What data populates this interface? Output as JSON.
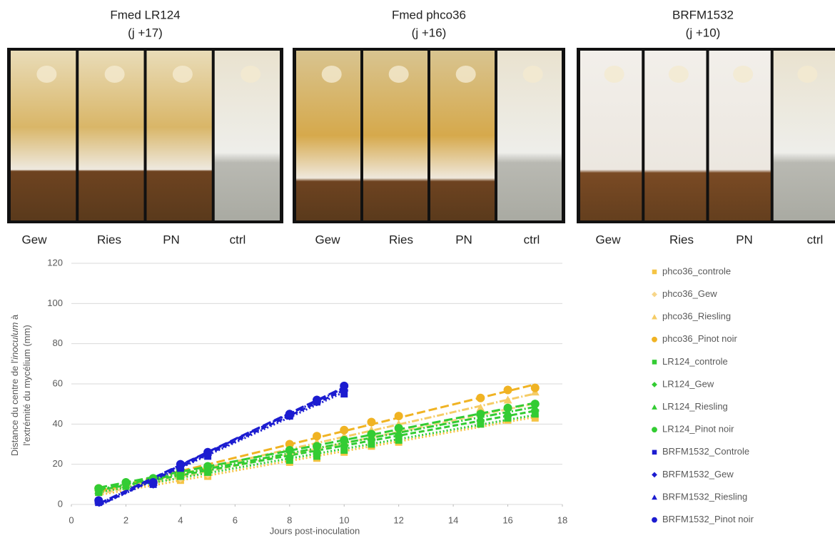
{
  "panels": [
    {
      "title": "Fmed LR124",
      "subtitle": "(j +17)",
      "lanes": [
        "Gew",
        "Ries",
        "PN",
        "ctrl"
      ]
    },
    {
      "title": "Fmed phco36",
      "subtitle": "(j +16)",
      "lanes": [
        "Gew",
        "Ries",
        "PN",
        "ctrl"
      ]
    },
    {
      "title": "BRFM1532",
      "subtitle": "(j +10)",
      "lanes": [
        "Gew",
        "Ries",
        "PN",
        "ctrl"
      ]
    }
  ],
  "chart_data": {
    "type": "scatter",
    "ylabel": [
      [
        "Distance du centre de l'",
        "inoculum",
        " à"
      ],
      [
        "l'extrémité du mycélium (mm)"
      ]
    ],
    "xlabel": "Jours post-inoculation",
    "xlim": [
      0,
      18
    ],
    "xticks": [
      0,
      2,
      4,
      6,
      8,
      10,
      12,
      14,
      16,
      18
    ],
    "ylim": [
      0,
      120
    ],
    "yticks": [
      0,
      20,
      40,
      60,
      80,
      100,
      120
    ],
    "grid": true,
    "legend": "right",
    "series": [
      {
        "name": "phco36_controle",
        "color": "#f5c444",
        "marker": "square",
        "x": [
          1,
          4,
          5,
          8,
          9,
          10,
          11,
          12,
          15,
          16,
          17
        ],
        "values": [
          6,
          12,
          14,
          21,
          23,
          26,
          29,
          31,
          40,
          42,
          43
        ]
      },
      {
        "name": "phco36_Gew",
        "color": "#f7d68a",
        "marker": "diamond",
        "x": [
          1,
          4,
          5,
          8,
          9,
          10,
          11,
          12,
          15,
          16,
          17
        ],
        "values": [
          7,
          13,
          15,
          25,
          27,
          30,
          33,
          37,
          45,
          48,
          50
        ]
      },
      {
        "name": "phco36_Riesling",
        "color": "#f5cc66",
        "marker": "triangle",
        "x": [
          1,
          4,
          5,
          8,
          9,
          10,
          11,
          12,
          15,
          16,
          17
        ],
        "values": [
          8,
          14,
          16,
          28,
          31,
          34,
          37,
          40,
          48,
          52,
          56
        ]
      },
      {
        "name": "phco36_Pinot noir",
        "color": "#f0b323",
        "marker": "circle",
        "x": [
          1,
          4,
          5,
          8,
          9,
          10,
          11,
          12,
          15,
          16,
          17
        ],
        "values": [
          8,
          15,
          18,
          30,
          34,
          37,
          41,
          44,
          53,
          57,
          58
        ]
      },
      {
        "name": "LR124_controle",
        "color": "#33cc33",
        "marker": "square",
        "x": [
          1,
          2,
          3,
          4,
          5,
          8,
          9,
          10,
          11,
          12,
          15,
          16,
          17
        ],
        "values": [
          6,
          9,
          11,
          14,
          16,
          22,
          24,
          27,
          30,
          32,
          40,
          43,
          45
        ]
      },
      {
        "name": "LR124_Gew",
        "color": "#33cc33",
        "marker": "diamond",
        "x": [
          1,
          2,
          3,
          4,
          5,
          8,
          9,
          10,
          11,
          12,
          15,
          16,
          17
        ],
        "values": [
          7,
          10,
          12,
          15,
          17,
          24,
          26,
          29,
          32,
          34,
          42,
          44,
          47
        ]
      },
      {
        "name": "LR124_Riesling",
        "color": "#33cc33",
        "marker": "triangle",
        "x": [
          1,
          2,
          3,
          4,
          5,
          8,
          9,
          10,
          11,
          12,
          15,
          16,
          17
        ],
        "values": [
          7,
          10,
          12,
          16,
          18,
          25,
          28,
          31,
          34,
          36,
          43,
          46,
          48
        ]
      },
      {
        "name": "LR124_Pinot noir",
        "color": "#33cc33",
        "marker": "circle",
        "x": [
          1,
          2,
          3,
          4,
          5,
          8,
          9,
          10,
          11,
          12,
          15,
          16,
          17
        ],
        "values": [
          8,
          11,
          13,
          17,
          19,
          27,
          29,
          32,
          35,
          38,
          45,
          48,
          50
        ]
      },
      {
        "name": "BRFM1532_Controle",
        "color": "#1c1cd0",
        "marker": "square",
        "x": [
          1,
          3,
          4,
          5,
          8,
          9,
          10
        ],
        "values": [
          1,
          10,
          18,
          24,
          44,
          51,
          55
        ]
      },
      {
        "name": "BRFM1532_Gew",
        "color": "#1c1cd0",
        "marker": "diamond",
        "x": [
          1,
          3,
          4,
          5,
          8,
          9,
          10
        ],
        "values": [
          1,
          10,
          19,
          25,
          44,
          51,
          57
        ]
      },
      {
        "name": "BRFM1532_Riesling",
        "color": "#1c1cd0",
        "marker": "triangle",
        "x": [
          1,
          3,
          4,
          5,
          8,
          9,
          10
        ],
        "values": [
          2,
          11,
          19,
          26,
          45,
          52,
          58
        ]
      },
      {
        "name": "BRFM1532_Pinot noir",
        "color": "#1c1cd0",
        "marker": "circle",
        "x": [
          1,
          3,
          4,
          5,
          8,
          9,
          10
        ],
        "values": [
          2,
          11,
          20,
          26,
          45,
          52,
          59
        ]
      }
    ]
  }
}
